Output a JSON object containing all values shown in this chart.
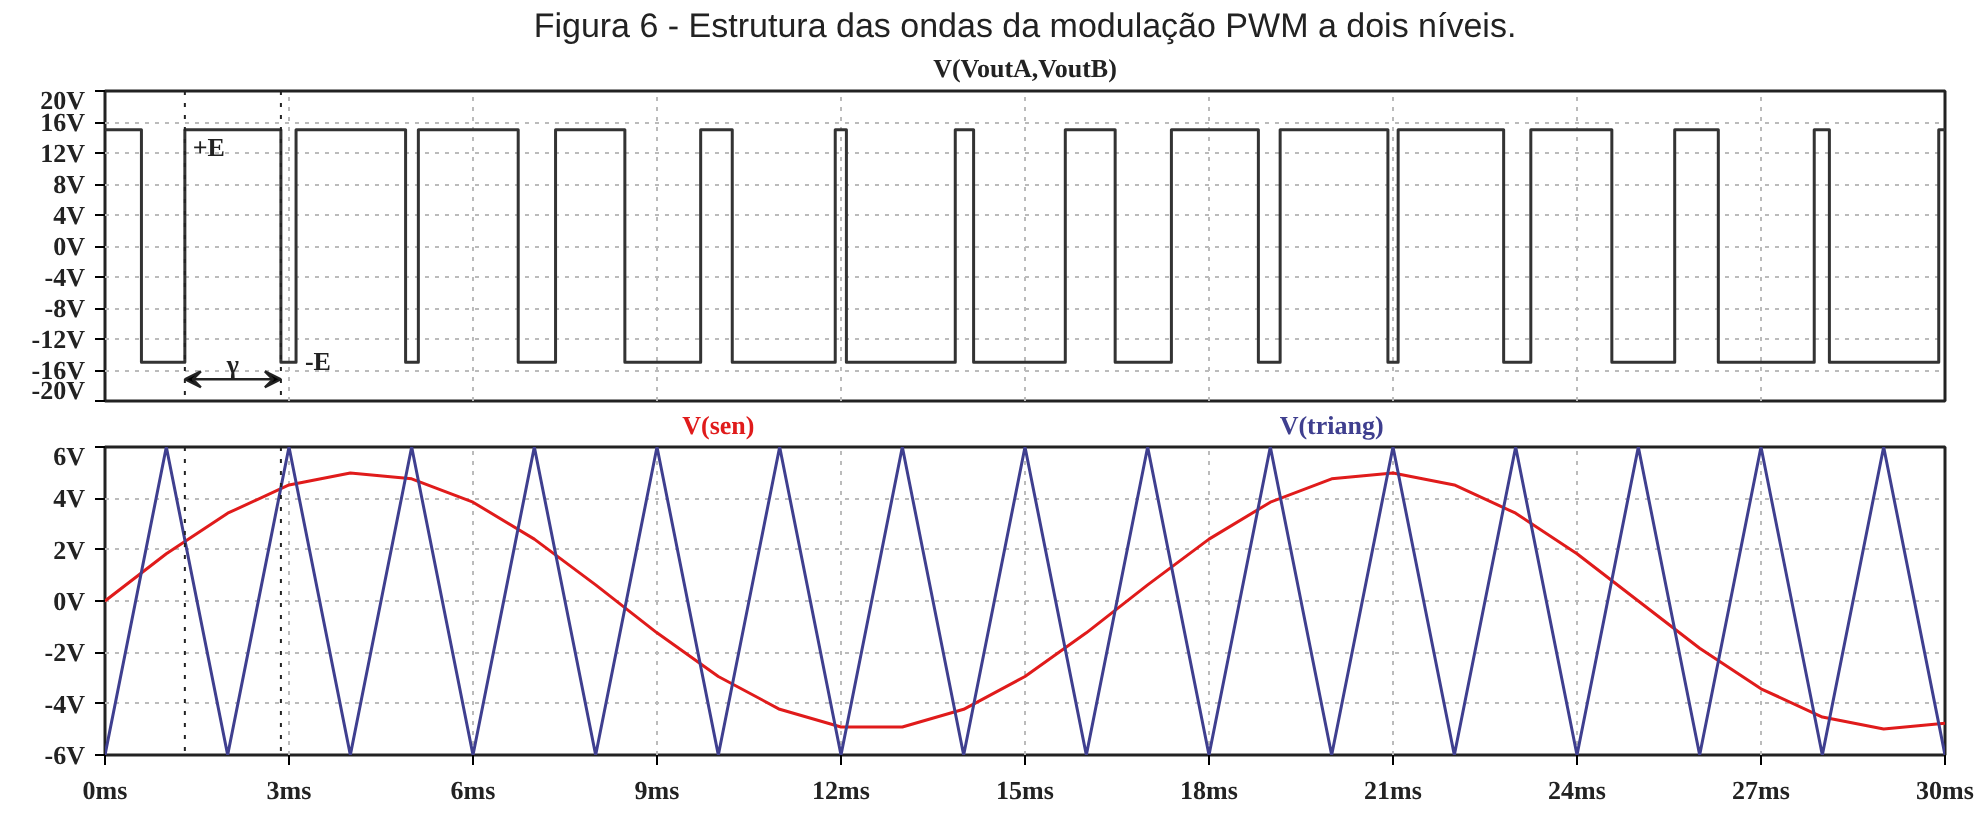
{
  "chart_data": [
    {
      "type": "line",
      "title": "Figura 6 - Estrutura das ondas da modulação PWM a dois níveis.",
      "xlim": [
        0,
        30
      ],
      "xticks": [
        0,
        3,
        6,
        9,
        12,
        15,
        18,
        21,
        24,
        27,
        30
      ],
      "tick_labels": "y",
      "ylim": [
        -20,
        20
      ],
      "yticks": [
        {
          "value": -20,
          "label": "-20V"
        },
        {
          "value": -16,
          "label": "-16V"
        },
        {
          "value": -12,
          "label": "-12V"
        },
        {
          "value": -8,
          "label": "-8V"
        },
        {
          "value": -4,
          "label": "-4V"
        },
        {
          "value": 0,
          "label": "0V"
        },
        {
          "value": 4,
          "label": "4V"
        },
        {
          "value": 8,
          "label": "8V"
        },
        {
          "value": 12,
          "label": "12V"
        },
        {
          "value": 16,
          "label": "16V"
        },
        {
          "value": 20,
          "label": "20V"
        }
      ],
      "grid": true,
      "series": [
        {
          "name": "V(VoutA,VoutB)",
          "color": "#333333",
          "x": [
            0,
            0.594,
            0.594,
            1.302,
            1.302,
            2.868,
            2.868,
            3.115,
            3.115,
            4.901,
            4.901,
            5.109,
            5.109,
            6.737,
            6.737,
            7.346,
            7.346,
            8.476,
            8.476,
            9.712,
            9.712,
            10.227,
            10.227,
            11.906,
            11.906,
            12.088,
            12.088,
            13.863,
            13.863,
            14.162,
            14.162,
            15.657,
            15.657,
            16.47,
            16.47,
            17.387,
            17.387,
            18.805,
            18.805,
            19.16,
            19.16,
            20.917,
            20.917,
            21.084,
            21.084,
            22.804,
            22.804,
            23.247,
            23.247,
            24.568,
            24.568,
            25.593,
            25.593,
            26.304,
            26.304,
            27.868,
            27.868,
            28.115,
            28.115,
            29.898,
            29.898,
            30
          ],
          "values": [
            15,
            15,
            -15,
            -15,
            15,
            15,
            -15,
            -15,
            15,
            15,
            -15,
            -15,
            15,
            15,
            -15,
            -15,
            15,
            15,
            -15,
            -15,
            15,
            15,
            -15,
            -15,
            15,
            15,
            -15,
            -15,
            15,
            15,
            -15,
            -15,
            15,
            15,
            -15,
            -15,
            15,
            15,
            -15,
            -15,
            15,
            15,
            -15,
            -15,
            15,
            15,
            -15,
            -15,
            15,
            15,
            -15,
            -15,
            15,
            15,
            -15,
            -15,
            15,
            15,
            -15,
            -15,
            15,
            15
          ]
        }
      ],
      "ref_lines": [
        {
          "axis": "x",
          "value": 1.302,
          "line_style": "dotted"
        },
        {
          "axis": "x",
          "value": 2.868,
          "line_style": "dotted"
        }
      ],
      "annotations": [
        "+E",
        "-E",
        "γ"
      ]
    },
    {
      "type": "line",
      "xlim": [
        0,
        30
      ],
      "xticks": [
        {
          "value": 0,
          "label": "0ms"
        },
        {
          "value": 3,
          "label": "3ms"
        },
        {
          "value": 6,
          "label": "6ms"
        },
        {
          "value": 9,
          "label": "9ms"
        },
        {
          "value": 12,
          "label": "12ms"
        },
        {
          "value": 15,
          "label": "15ms"
        },
        {
          "value": 18,
          "label": "18ms"
        },
        {
          "value": 21,
          "label": "21ms"
        },
        {
          "value": 24,
          "label": "24ms"
        },
        {
          "value": 27,
          "label": "27ms"
        },
        {
          "value": 30,
          "label": "30ms"
        }
      ],
      "ylim": [
        -6,
        6
      ],
      "yticks": [
        {
          "value": -6,
          "label": "-6V"
        },
        {
          "value": -4,
          "label": "-4V"
        },
        {
          "value": -2,
          "label": "-2V"
        },
        {
          "value": 0,
          "label": "0V"
        },
        {
          "value": 2,
          "label": "2V"
        },
        {
          "value": 4,
          "label": "4V"
        },
        {
          "value": 6,
          "label": "6V"
        }
      ],
      "grid": true,
      "series": [
        {
          "name": "V(sen)",
          "color": "#e01b1b",
          "x": [
            0,
            1,
            2,
            3,
            4,
            5,
            6,
            7,
            8,
            9,
            10,
            11,
            12,
            13,
            14,
            15,
            16,
            17,
            18,
            19,
            20,
            21,
            22,
            23,
            24,
            25,
            26,
            27,
            28,
            29,
            30
          ],
          "values": [
            0,
            1.84,
            3.42,
            4.52,
            4.99,
            4.76,
            3.85,
            2.41,
            0.63,
            -1.24,
            -2.94,
            -4.22,
            -4.91,
            -4.91,
            -4.22,
            -2.94,
            -1.24,
            0.63,
            2.41,
            3.85,
            4.76,
            4.99,
            4.52,
            3.42,
            1.84,
            0,
            -1.84,
            -3.42,
            -4.52,
            -4.99,
            -4.76
          ]
        },
        {
          "name": "V(triang)",
          "color": "#3f3f8f",
          "x": [
            0,
            1,
            2,
            3,
            4,
            5,
            6,
            7,
            8,
            9,
            10,
            11,
            12,
            13,
            14,
            15,
            16,
            17,
            18,
            19,
            20,
            21,
            22,
            23,
            24,
            25,
            26,
            27,
            28,
            29,
            30
          ],
          "values": [
            -6,
            6,
            -6,
            6,
            -6,
            6,
            -6,
            6,
            -6,
            6,
            -6,
            6,
            -6,
            6,
            -6,
            6,
            -6,
            6,
            -6,
            6,
            -6,
            6,
            -6,
            6,
            -6,
            6,
            -6,
            6,
            -6,
            6,
            -6
          ]
        }
      ],
      "ref_lines": [
        {
          "axis": "x",
          "value": 1.302,
          "line_style": "dotted"
        },
        {
          "axis": "x",
          "value": 2.868,
          "line_style": "dotted"
        }
      ]
    }
  ]
}
